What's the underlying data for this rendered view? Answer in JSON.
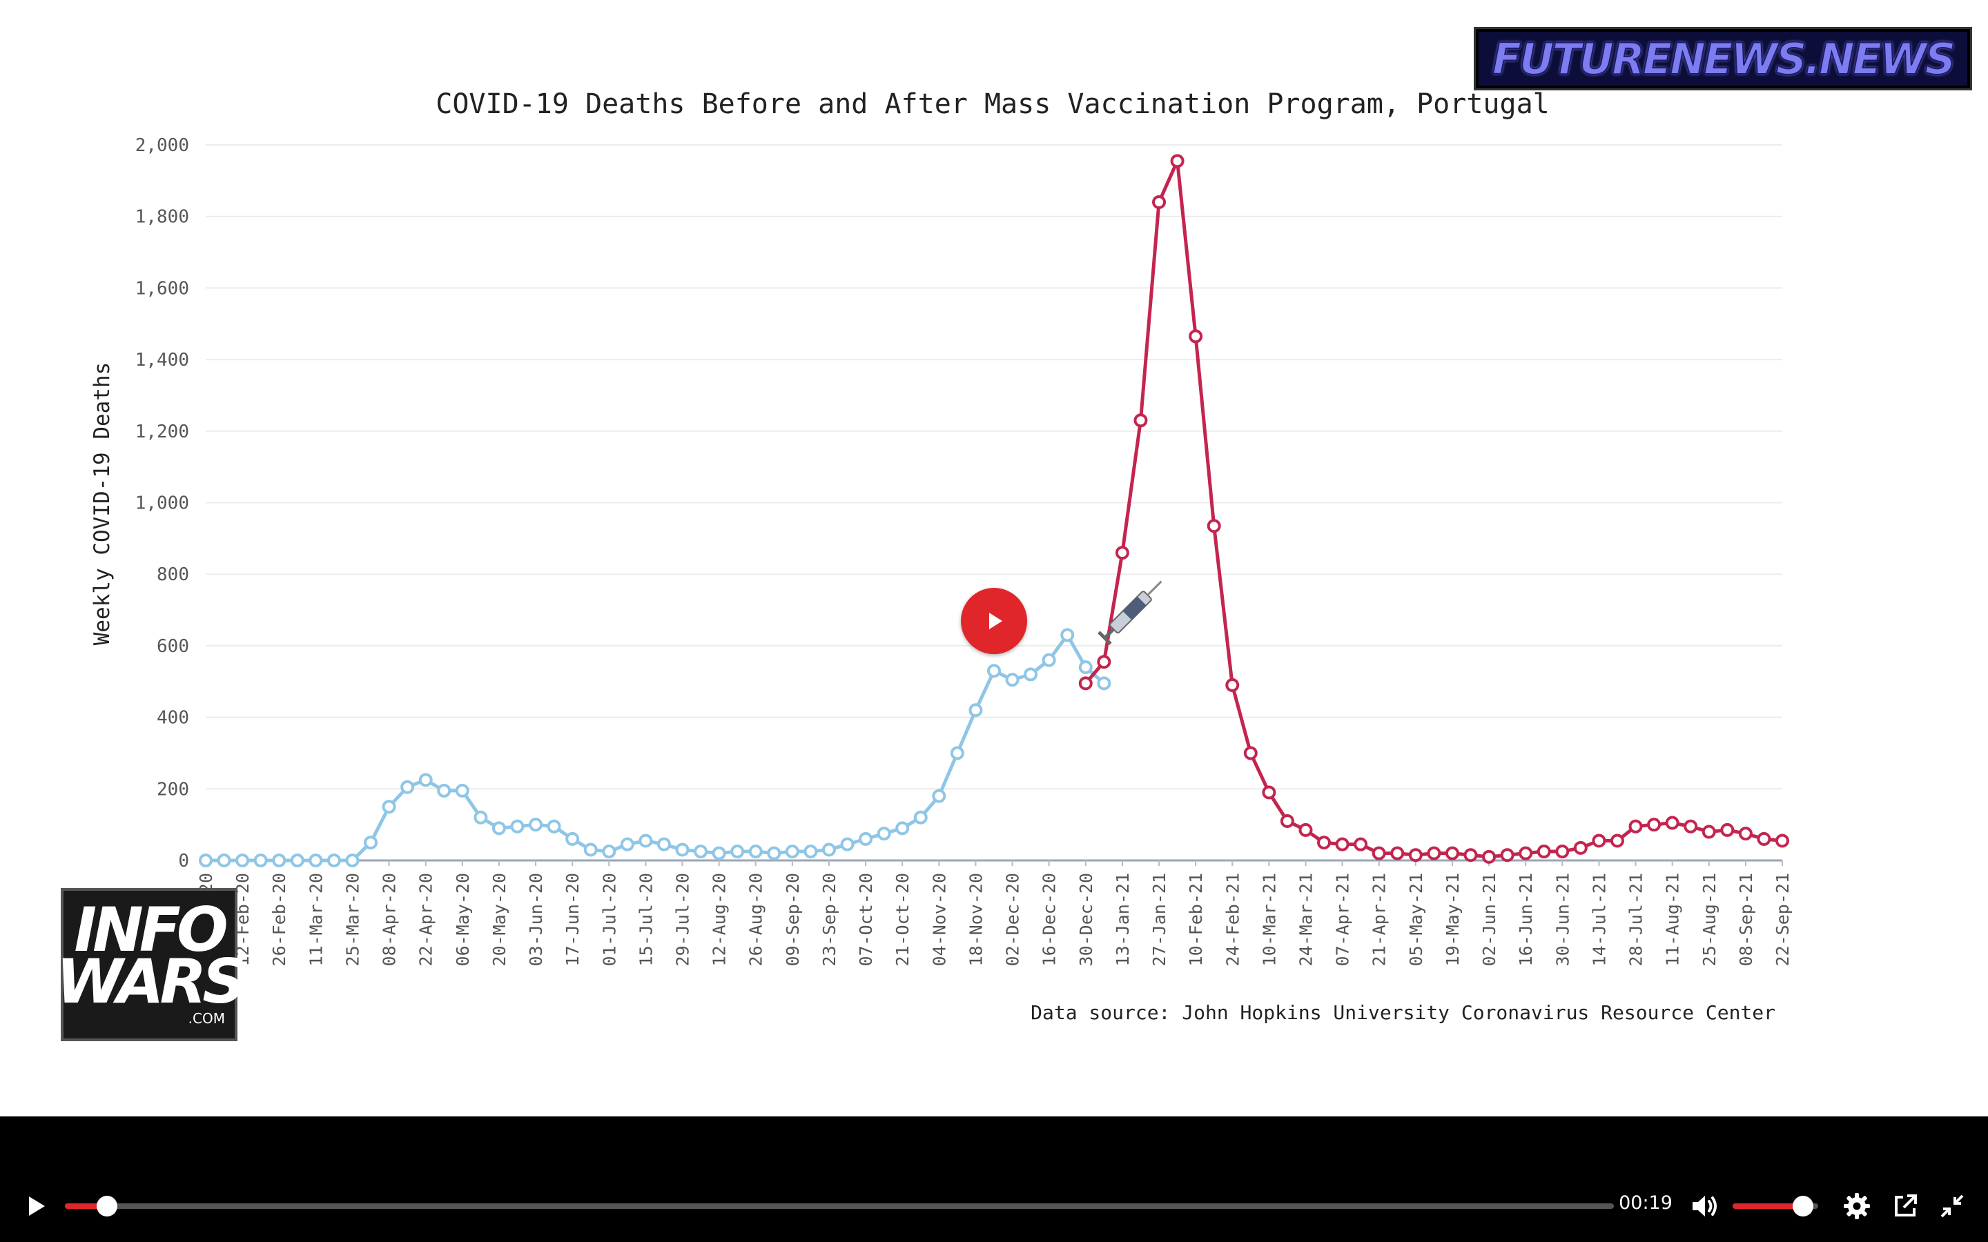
{
  "watermark_top": "FUTURENEWS.NEWS",
  "watermark_bottom": {
    "line1": "INFO",
    "line2": "WARS",
    "line3": ".COM"
  },
  "chart_data": {
    "type": "line",
    "title": "COVID-19 Deaths Before and After Mass Vaccination Program, Portugal",
    "ylabel": "Weekly COVID-19 Deaths",
    "xlabel": "",
    "ylim": [
      0,
      2000
    ],
    "yticks": [
      0,
      200,
      400,
      600,
      800,
      1000,
      1200,
      1400,
      1600,
      1800,
      2000
    ],
    "ytick_labels": [
      "0",
      "200",
      "400",
      "600",
      "800",
      "1,000",
      "1,200",
      "1,400",
      "1,600",
      "1,800",
      "2,000"
    ],
    "x_tick_labels": [
      "29-Jan-20",
      "12-Feb-20",
      "26-Feb-20",
      "11-Mar-20",
      "25-Mar-20",
      "08-Apr-20",
      "22-Apr-20",
      "06-May-20",
      "20-May-20",
      "03-Jun-20",
      "17-Jun-20",
      "01-Jul-20",
      "15-Jul-20",
      "29-Jul-20",
      "12-Aug-20",
      "26-Aug-20",
      "09-Sep-20",
      "23-Sep-20",
      "07-Oct-20",
      "21-Oct-20",
      "04-Nov-20",
      "18-Nov-20",
      "02-Dec-20",
      "16-Dec-20",
      "30-Dec-20",
      "13-Jan-21",
      "27-Jan-21",
      "10-Feb-21",
      "24-Feb-21",
      "10-Mar-21",
      "24-Mar-21",
      "07-Apr-21",
      "21-Apr-21",
      "05-May-21",
      "19-May-21",
      "02-Jun-21",
      "16-Jun-21",
      "30-Jun-21",
      "14-Jul-21",
      "28-Jul-21",
      "11-Aug-21",
      "25-Aug-21",
      "08-Sep-21",
      "22-Sep-21"
    ],
    "x_tick_start": "29-Jan-20",
    "x_tick_step_weeks": 2,
    "grid": true,
    "source_note": "Data source: John Hopkins University Coronavirus Resource Center",
    "series": [
      {
        "color": "#8fc6e6",
        "start_date": "29-Jan-20",
        "values": [
          0,
          0,
          0,
          0,
          0,
          0,
          0,
          0,
          0,
          50,
          150,
          205,
          225,
          195,
          195,
          120,
          90,
          95,
          100,
          95,
          60,
          30,
          25,
          45,
          55,
          45,
          30,
          25,
          20,
          25,
          25,
          20,
          25,
          25,
          30,
          45,
          60,
          75,
          90,
          120,
          180,
          300,
          420,
          530,
          505,
          520,
          560,
          630,
          540,
          495
        ]
      },
      {
        "color": "#c4254f",
        "start_date": "30-Dec-20",
        "values": [
          495,
          555,
          860,
          1230,
          1840,
          1955,
          1465,
          935,
          490,
          300,
          190,
          110,
          85,
          50,
          45,
          45,
          20,
          20,
          15,
          20,
          20,
          15,
          10,
          15,
          20,
          25,
          25,
          35,
          55,
          55,
          95,
          100,
          105,
          95,
          80,
          85,
          75,
          60,
          55
        ]
      }
    ]
  },
  "player": {
    "current_time": "00:19",
    "progress": 0.027,
    "volume": 0.82
  },
  "icons": {
    "center_play": "play-icon",
    "play": "play-icon",
    "volume": "volume-icon",
    "settings": "gear-icon",
    "popout": "external-link-icon",
    "exit_fullscreen": "exit-fullscreen-icon"
  },
  "colors": {
    "accent": "#e0262b",
    "pre_series": "#8fc6e6",
    "post_series": "#c4254f"
  }
}
